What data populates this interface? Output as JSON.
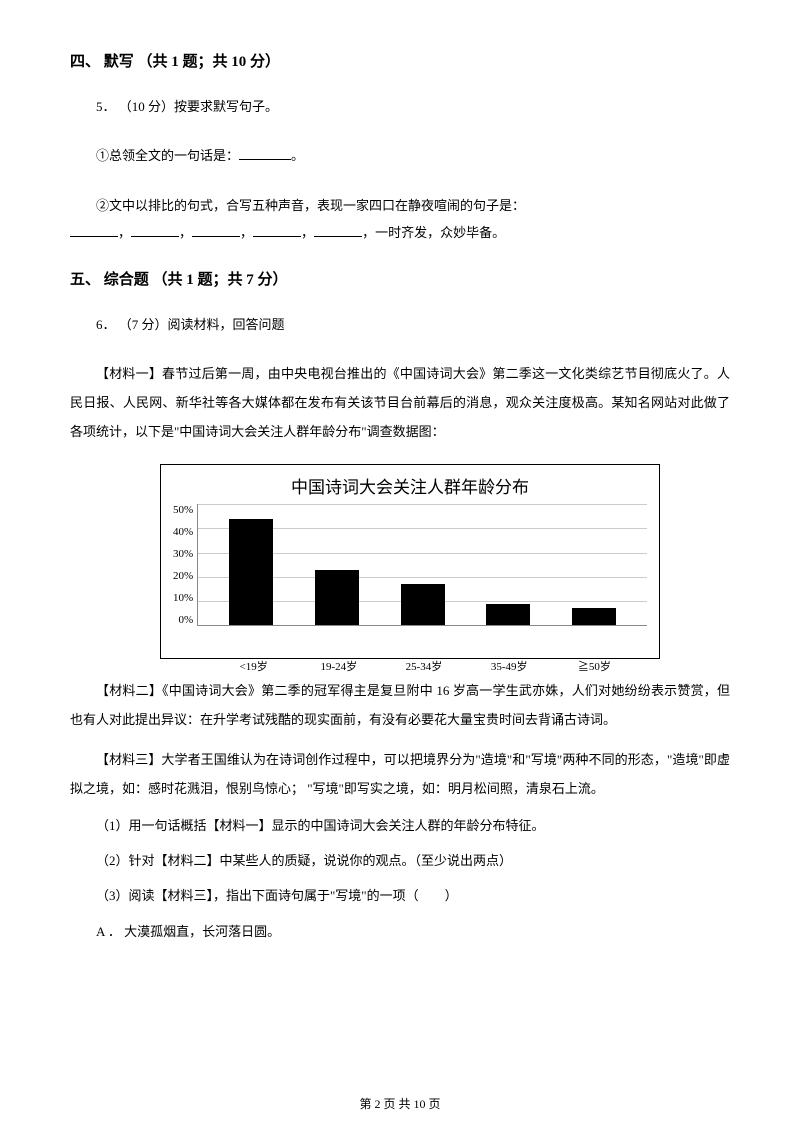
{
  "section4": {
    "heading": "四、 默写 （共 1 题；共 10 分）",
    "q5_intro": "5． （10 分）按要求默写句子。",
    "q5_1_prefix": "①总领全文的一句话是：",
    "q5_1_suffix": "。",
    "q5_2_line1": "②文中以排比的句式，合写五种声音，表现一家四口在静夜喧闹的句子是：",
    "q5_2_suffix": "，一时齐发，众妙毕备。"
  },
  "section5": {
    "heading": "五、 综合题 （共 1 题；共 7 分）",
    "q6_intro": "6． （7 分）阅读材料，回答问题",
    "material1": "【材料一】春节过后第一周，由中央电视台推出的《中国诗词大会》第二季这一文化类综艺节目彻底火了。人民日报、人民网、新华社等各大媒体都在发布有关该节目台前幕后的消息，观众关注度极高。某知名网站对此做了各项统计，以下是\"中国诗词大会关注人群年龄分布\"调查数据图：",
    "chart": {
      "title": "中国诗词大会关注人群年龄分布",
      "type": "bar",
      "y_max": 50,
      "y_ticks": [
        "50%",
        "40%",
        "30%",
        "20%",
        "10%",
        "0%"
      ],
      "categories": [
        "<19岁",
        "19-24岁",
        "25-34岁",
        "35-49岁",
        "≧50岁"
      ],
      "values": [
        44,
        23,
        17,
        9,
        7
      ],
      "bar_color": "#000000",
      "grid_color": "#cccccc",
      "axis_color": "#888888",
      "background": "#ffffff",
      "label_fontsize": 11
    },
    "material2": "【材料二】《中国诗词大会》第二季的冠军得主是复旦附中 16 岁高一学生武亦姝，人们对她纷纷表示赞赏，但也有人对此提出异议：在升学考试残酷的现实面前，有没有必要花大量宝贵时间去背诵古诗词。",
    "material3": "【材料三】大学者王国维认为在诗词创作过程中，可以把境界分为\"造境\"和\"写境\"两种不同的形态，\"造境\"即虚拟之境，如：感时花溅泪，恨别鸟惊心； \"写境\"即写实之境，如：明月松间照，清泉石上流。",
    "sub1": "（1）用一句话概括【材料一】显示的中国诗词大会关注人群的年龄分布特征。",
    "sub2": "（2）针对【材料二】中某些人的质疑，说说你的观点。（至少说出两点）",
    "sub3": "（3）阅读【材料三】，指出下面诗句属于\"写境\"的一项（　　）",
    "optA": "A ． 大漠孤烟直，长河落日圆。"
  },
  "footer": "第 2 页 共 10 页"
}
